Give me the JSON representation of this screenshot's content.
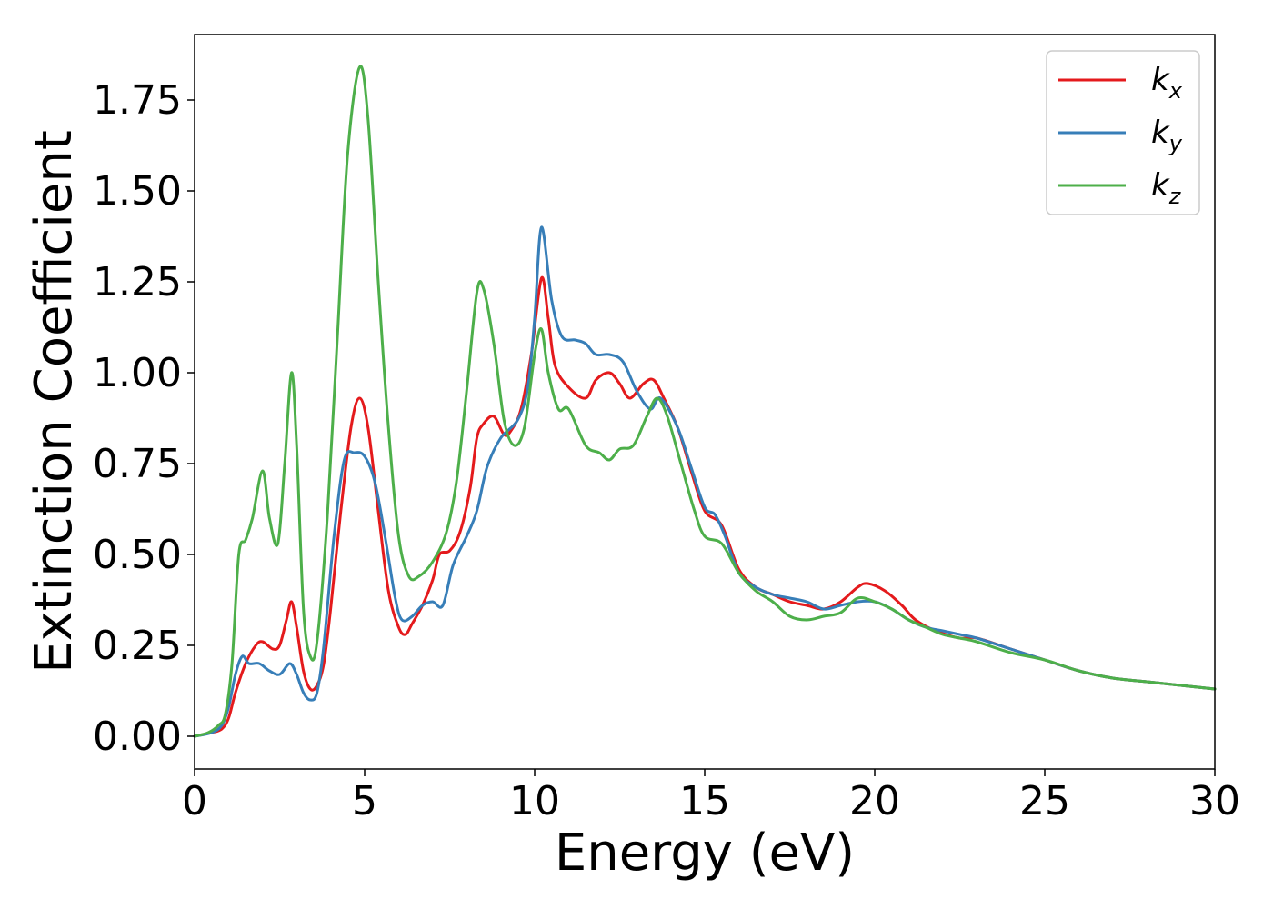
{
  "chart_data": {
    "type": "line",
    "title": "",
    "xlabel": "Energy (eV)",
    "ylabel": "Extinction Coefficient",
    "xlim": [
      0,
      30
    ],
    "ylim": [
      -0.09,
      1.93
    ],
    "xticks": [
      0,
      5,
      10,
      15,
      20,
      25,
      30
    ],
    "xtick_labels": [
      "0",
      "5",
      "10",
      "15",
      "20",
      "25",
      "30"
    ],
    "yticks": [
      0.0,
      0.25,
      0.5,
      0.75,
      1.0,
      1.25,
      1.5,
      1.75
    ],
    "ytick_labels": [
      "0.00",
      "0.25",
      "0.50",
      "0.75",
      "1.00",
      "1.25",
      "1.50",
      "1.75"
    ],
    "grid": false,
    "legend_position": "top-right",
    "series": [
      {
        "name_base": "k",
        "name_sub": "x",
        "color": "#e41a1c",
        "points": [
          [
            0,
            0
          ],
          [
            0.5,
            0.01
          ],
          [
            0.8,
            0.02
          ],
          [
            1.0,
            0.05
          ],
          [
            1.2,
            0.12
          ],
          [
            1.5,
            0.2
          ],
          [
            1.8,
            0.25
          ],
          [
            2.0,
            0.26
          ],
          [
            2.3,
            0.24
          ],
          [
            2.5,
            0.25
          ],
          [
            2.7,
            0.32
          ],
          [
            2.85,
            0.37
          ],
          [
            3.0,
            0.3
          ],
          [
            3.2,
            0.18
          ],
          [
            3.4,
            0.13
          ],
          [
            3.6,
            0.14
          ],
          [
            3.8,
            0.2
          ],
          [
            4.0,
            0.35
          ],
          [
            4.3,
            0.62
          ],
          [
            4.6,
            0.85
          ],
          [
            4.85,
            0.93
          ],
          [
            5.1,
            0.85
          ],
          [
            5.4,
            0.62
          ],
          [
            5.7,
            0.4
          ],
          [
            6.0,
            0.3
          ],
          [
            6.2,
            0.28
          ],
          [
            6.4,
            0.31
          ],
          [
            6.7,
            0.36
          ],
          [
            7.0,
            0.43
          ],
          [
            7.2,
            0.5
          ],
          [
            7.5,
            0.51
          ],
          [
            7.8,
            0.56
          ],
          [
            8.1,
            0.68
          ],
          [
            8.3,
            0.82
          ],
          [
            8.5,
            0.86
          ],
          [
            8.8,
            0.88
          ],
          [
            9.1,
            0.83
          ],
          [
            9.3,
            0.84
          ],
          [
            9.6,
            0.9
          ],
          [
            9.9,
            1.05
          ],
          [
            10.2,
            1.26
          ],
          [
            10.4,
            1.15
          ],
          [
            10.6,
            1.02
          ],
          [
            11.0,
            0.96
          ],
          [
            11.5,
            0.93
          ],
          [
            11.8,
            0.98
          ],
          [
            12.2,
            1.0
          ],
          [
            12.5,
            0.97
          ],
          [
            12.8,
            0.93
          ],
          [
            13.2,
            0.97
          ],
          [
            13.5,
            0.98
          ],
          [
            13.8,
            0.93
          ],
          [
            14.2,
            0.85
          ],
          [
            14.6,
            0.73
          ],
          [
            15.0,
            0.62
          ],
          [
            15.5,
            0.58
          ],
          [
            16.0,
            0.46
          ],
          [
            16.5,
            0.41
          ],
          [
            17.0,
            0.39
          ],
          [
            17.5,
            0.37
          ],
          [
            18.0,
            0.36
          ],
          [
            18.5,
            0.35
          ],
          [
            19.0,
            0.37
          ],
          [
            19.5,
            0.41
          ],
          [
            19.8,
            0.42
          ],
          [
            20.3,
            0.4
          ],
          [
            20.8,
            0.36
          ],
          [
            21.2,
            0.32
          ],
          [
            21.8,
            0.29
          ],
          [
            22.5,
            0.27
          ],
          [
            23.0,
            0.27
          ],
          [
            24.0,
            0.24
          ],
          [
            25.0,
            0.21
          ],
          [
            26.0,
            0.18
          ],
          [
            27.0,
            0.16
          ],
          [
            28.0,
            0.15
          ],
          [
            29.0,
            0.14
          ],
          [
            30.0,
            0.13
          ]
        ]
      },
      {
        "name_base": "k",
        "name_sub": "y",
        "color": "#377eb8",
        "points": [
          [
            0,
            0
          ],
          [
            0.5,
            0.01
          ],
          [
            0.8,
            0.03
          ],
          [
            1.0,
            0.08
          ],
          [
            1.2,
            0.17
          ],
          [
            1.4,
            0.22
          ],
          [
            1.6,
            0.2
          ],
          [
            1.9,
            0.2
          ],
          [
            2.2,
            0.18
          ],
          [
            2.5,
            0.17
          ],
          [
            2.8,
            0.2
          ],
          [
            3.0,
            0.17
          ],
          [
            3.2,
            0.12
          ],
          [
            3.4,
            0.1
          ],
          [
            3.6,
            0.12
          ],
          [
            3.8,
            0.25
          ],
          [
            4.1,
            0.55
          ],
          [
            4.4,
            0.76
          ],
          [
            4.7,
            0.78
          ],
          [
            5.0,
            0.77
          ],
          [
            5.3,
            0.7
          ],
          [
            5.6,
            0.55
          ],
          [
            5.9,
            0.38
          ],
          [
            6.1,
            0.32
          ],
          [
            6.4,
            0.33
          ],
          [
            6.7,
            0.36
          ],
          [
            7.0,
            0.37
          ],
          [
            7.3,
            0.36
          ],
          [
            7.6,
            0.47
          ],
          [
            8.0,
            0.55
          ],
          [
            8.3,
            0.62
          ],
          [
            8.6,
            0.74
          ],
          [
            9.0,
            0.82
          ],
          [
            9.5,
            0.87
          ],
          [
            9.8,
            0.96
          ],
          [
            10.0,
            1.15
          ],
          [
            10.2,
            1.4
          ],
          [
            10.5,
            1.2
          ],
          [
            10.8,
            1.1
          ],
          [
            11.2,
            1.09
          ],
          [
            11.5,
            1.08
          ],
          [
            11.8,
            1.05
          ],
          [
            12.2,
            1.05
          ],
          [
            12.6,
            1.03
          ],
          [
            13.0,
            0.95
          ],
          [
            13.4,
            0.9
          ],
          [
            13.7,
            0.93
          ],
          [
            14.2,
            0.85
          ],
          [
            14.6,
            0.74
          ],
          [
            15.0,
            0.63
          ],
          [
            15.3,
            0.61
          ],
          [
            15.6,
            0.55
          ],
          [
            16.0,
            0.45
          ],
          [
            16.5,
            0.41
          ],
          [
            17.0,
            0.39
          ],
          [
            17.5,
            0.38
          ],
          [
            18.0,
            0.37
          ],
          [
            18.5,
            0.35
          ],
          [
            19.0,
            0.36
          ],
          [
            19.5,
            0.37
          ],
          [
            20.0,
            0.37
          ],
          [
            20.5,
            0.35
          ],
          [
            21.0,
            0.32
          ],
          [
            21.5,
            0.3
          ],
          [
            22.0,
            0.29
          ],
          [
            22.5,
            0.28
          ],
          [
            23.0,
            0.27
          ],
          [
            24.0,
            0.24
          ],
          [
            25.0,
            0.21
          ],
          [
            26.0,
            0.18
          ],
          [
            27.0,
            0.16
          ],
          [
            28.0,
            0.15
          ],
          [
            29.0,
            0.14
          ],
          [
            30.0,
            0.13
          ]
        ]
      },
      {
        "name_base": "k",
        "name_sub": "z",
        "color": "#4daf4a",
        "points": [
          [
            0,
            0
          ],
          [
            0.4,
            0.01
          ],
          [
            0.7,
            0.03
          ],
          [
            0.9,
            0.06
          ],
          [
            1.1,
            0.2
          ],
          [
            1.3,
            0.5
          ],
          [
            1.5,
            0.54
          ],
          [
            1.7,
            0.6
          ],
          [
            2.0,
            0.73
          ],
          [
            2.2,
            0.6
          ],
          [
            2.45,
            0.53
          ],
          [
            2.65,
            0.75
          ],
          [
            2.85,
            1.0
          ],
          [
            3.0,
            0.8
          ],
          [
            3.2,
            0.35
          ],
          [
            3.4,
            0.22
          ],
          [
            3.6,
            0.26
          ],
          [
            3.9,
            0.6
          ],
          [
            4.2,
            1.1
          ],
          [
            4.5,
            1.6
          ],
          [
            4.85,
            1.84
          ],
          [
            5.1,
            1.7
          ],
          [
            5.4,
            1.25
          ],
          [
            5.7,
            0.85
          ],
          [
            6.0,
            0.55
          ],
          [
            6.3,
            0.44
          ],
          [
            6.6,
            0.44
          ],
          [
            7.0,
            0.48
          ],
          [
            7.4,
            0.56
          ],
          [
            7.7,
            0.7
          ],
          [
            8.0,
            0.95
          ],
          [
            8.3,
            1.22
          ],
          [
            8.5,
            1.23
          ],
          [
            8.8,
            1.08
          ],
          [
            9.1,
            0.87
          ],
          [
            9.4,
            0.8
          ],
          [
            9.7,
            0.85
          ],
          [
            10.0,
            1.05
          ],
          [
            10.2,
            1.12
          ],
          [
            10.4,
            1.0
          ],
          [
            10.7,
            0.9
          ],
          [
            11.0,
            0.9
          ],
          [
            11.5,
            0.8
          ],
          [
            11.9,
            0.78
          ],
          [
            12.2,
            0.76
          ],
          [
            12.5,
            0.79
          ],
          [
            12.9,
            0.8
          ],
          [
            13.3,
            0.88
          ],
          [
            13.6,
            0.93
          ],
          [
            13.9,
            0.88
          ],
          [
            14.3,
            0.75
          ],
          [
            14.7,
            0.62
          ],
          [
            15.0,
            0.55
          ],
          [
            15.5,
            0.53
          ],
          [
            16.0,
            0.45
          ],
          [
            16.5,
            0.4
          ],
          [
            17.0,
            0.37
          ],
          [
            17.5,
            0.33
          ],
          [
            18.0,
            0.32
          ],
          [
            18.5,
            0.33
          ],
          [
            19.0,
            0.34
          ],
          [
            19.5,
            0.38
          ],
          [
            20.0,
            0.37
          ],
          [
            20.5,
            0.35
          ],
          [
            21.0,
            0.32
          ],
          [
            21.5,
            0.3
          ],
          [
            22.0,
            0.28
          ],
          [
            22.5,
            0.27
          ],
          [
            23.0,
            0.26
          ],
          [
            24.0,
            0.23
          ],
          [
            25.0,
            0.21
          ],
          [
            26.0,
            0.18
          ],
          [
            27.0,
            0.16
          ],
          [
            28.0,
            0.15
          ],
          [
            29.0,
            0.14
          ],
          [
            30.0,
            0.13
          ]
        ]
      }
    ]
  }
}
